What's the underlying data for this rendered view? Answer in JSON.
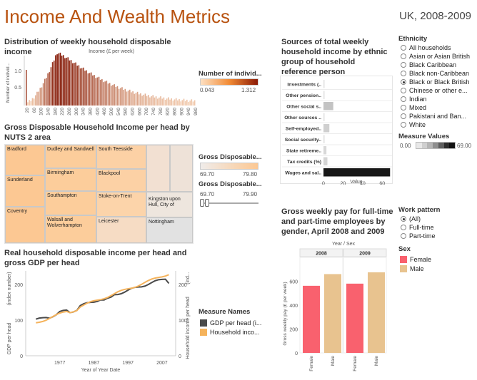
{
  "header": {
    "title": "Income And Wealth Metrics",
    "subtitle": "UK, 2008-2009"
  },
  "histogram": {
    "title": "Distribution of weekly household disposable income",
    "xlabel": "Income (£ per week)",
    "ylabel": "Number of individ...",
    "yticks": [
      "0.5",
      "1.0"
    ],
    "xticks": [
      "20",
      "60",
      "100",
      "140",
      "180",
      "220",
      "260",
      "300",
      "340",
      "380",
      "420",
      "460",
      "500",
      "540",
      "580",
      "620",
      "660",
      "700",
      "740",
      "780",
      "820",
      "860",
      "900",
      "940",
      "980"
    ],
    "legend_title": "Number of individ...",
    "legend_min": "0.043",
    "legend_max": "1.312"
  },
  "treemap": {
    "title": "Gross Disposable Household Income per head by NUTS 2 area",
    "cells": [
      "Bradford",
      "Sunderland",
      "Coventry",
      "Dudley and Sandwell",
      "Birmingham",
      "Southampton",
      "Walsall and Wolverhampton",
      "South Teesside",
      "Blackpool",
      "Stoke-on-Trent",
      "Leicester",
      "Kingston upon Hull, City of",
      "Nottingham"
    ],
    "legend1_title": "Gross Disposable...",
    "legend1_min": "69.70",
    "legend1_max": "79.80",
    "legend2_title": "Gross Disposable...",
    "legend2_min": "69.70",
    "legend2_max": "79.90"
  },
  "linechart": {
    "title": "Real household disposable income per head and gross GDP per head",
    "xlabel": "Year of Year Date",
    "ylabel_left": "GDP per head",
    "ylabel_left2": "(index number)",
    "ylabel_right": "Household income per head",
    "ylabel_right2": "(ind...",
    "xticks": [
      "1977",
      "1987",
      "1997",
      "2007"
    ],
    "yticks": [
      "0",
      "100",
      "200"
    ],
    "legend_title": "Measure Names",
    "legend": [
      "GDP per head (i...",
      "Household inco..."
    ],
    "colors": [
      "#4a4a4a",
      "#f5b35c"
    ]
  },
  "chart_data": [
    {
      "type": "bar",
      "title": "Sources of total weekly household income by ethnic group of household reference person",
      "categories": [
        "Investments (..",
        "Other pension..",
        "Other social s..",
        "Other sources ..",
        "Self-employed..",
        "Social security..",
        "State retireme..",
        "Tax credits (%)",
        "Wages and sal.."
      ],
      "values": [
        0.5,
        0.5,
        10,
        0.5,
        6,
        1,
        3,
        4,
        68
      ],
      "xlabel": "Value",
      "xlim": [
        0,
        70
      ],
      "xticks": [
        "0",
        "20",
        "40",
        "60"
      ]
    },
    {
      "type": "bar",
      "title": "Gross weekly pay for full-time and part-time employees by gender, April 2008 and 2009",
      "header": "Year / Sex",
      "groups": [
        "2008",
        "2009"
      ],
      "categories": [
        "Female",
        "Male"
      ],
      "series": [
        {
          "name": "2008",
          "values": [
            562,
            660
          ]
        },
        {
          "name": "2009",
          "values": [
            580,
            675
          ]
        }
      ],
      "ylabel": "Gross weekly pay (£ per week)",
      "ylim": [
        0,
        800
      ],
      "yticks": [
        "0",
        "200",
        "400",
        "600"
      ],
      "colors": [
        "#f9616e",
        "#e8c38f"
      ]
    }
  ],
  "ethnicity": {
    "title": "Ethnicity",
    "options": [
      "All households",
      "Asian or Asian British",
      "Black Caribbean",
      "Black non-Caribbean",
      "Black or Black British",
      "Chinese or other e...",
      "Indian",
      "Mixed",
      "Pakistani and Ban...",
      "White"
    ],
    "selected_index": 4
  },
  "measure_values": {
    "title": "Measure Values",
    "min": "0.00",
    "max": "69.00"
  },
  "work_pattern": {
    "title": "Work pattern",
    "options": [
      "(All)",
      "Full-time",
      "Part-time"
    ],
    "selected_index": 0
  },
  "sex_legend": {
    "title": "Sex",
    "items": [
      "Female",
      "Male"
    ]
  }
}
